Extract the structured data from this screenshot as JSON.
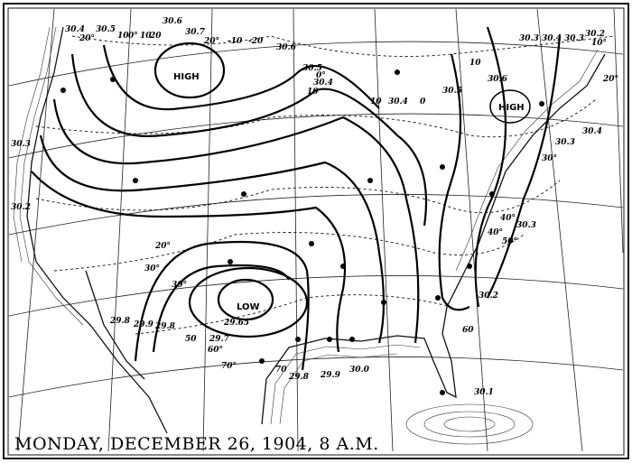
{
  "caption": "MONDAY, DECEMBER 26, 1904, 8 A.M.",
  "centers": {
    "high_west": "HIGH",
    "high_east": "HIGH",
    "low": "LOW"
  },
  "pressure_labels": [
    "30.4",
    "30.5",
    "30.6",
    "30.7",
    "30.6",
    "30.5",
    "30.4",
    "30.4",
    "30.5",
    "30.6",
    "30.4",
    "30.3",
    "30.2",
    "30.3",
    "30.3",
    "30.4",
    "30.3",
    "30.2",
    "30.1",
    "30.0",
    "29.9",
    "29.8",
    "29.8",
    "29.9",
    "29.8",
    "29.65",
    "29.7",
    "30.3",
    "30.2"
  ],
  "temperature_labels": [
    "20°",
    "10",
    "0°",
    "10",
    "20",
    "-10",
    "-20",
    "20°",
    "10",
    "0°",
    "10",
    "10",
    "0",
    "10°",
    "20°",
    "30°",
    "40°",
    "50°",
    "60",
    "30°",
    "20°",
    "50",
    "60°",
    "70°",
    "70",
    "30°",
    "40°"
  ],
  "colors": {
    "ink": "#000000",
    "paper": "#ffffff"
  }
}
